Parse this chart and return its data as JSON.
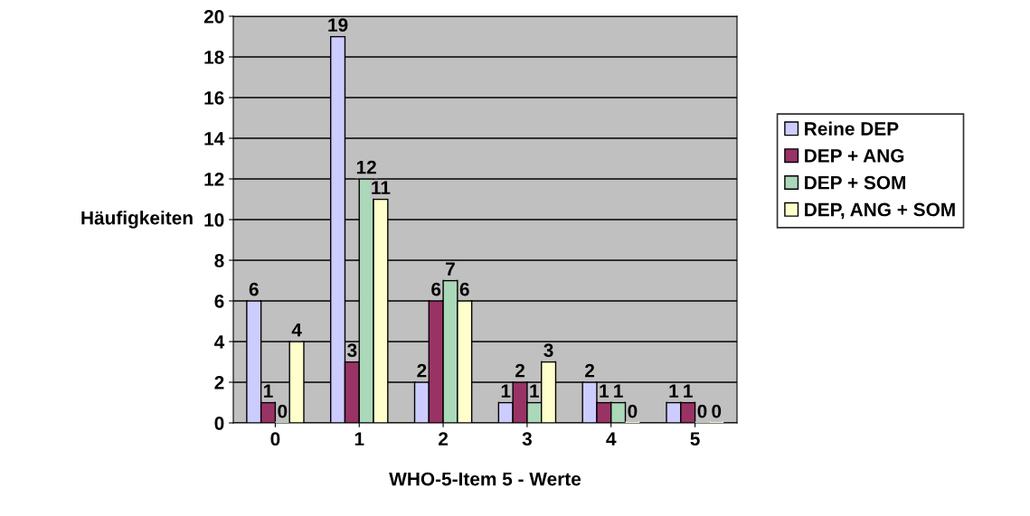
{
  "chart_data": {
    "type": "bar",
    "xlabel": "WHO-5-Item 5 - Werte",
    "ylabel": "Häufigkeiten",
    "categories": [
      "0",
      "1",
      "2",
      "3",
      "4",
      "5"
    ],
    "series": [
      {
        "name": "Reine DEP",
        "color": "#ccccff",
        "values": [
          6,
          19,
          2,
          1,
          2,
          1
        ]
      },
      {
        "name": "DEP + ANG",
        "color": "#993366",
        "values": [
          1,
          3,
          6,
          2,
          1,
          1
        ]
      },
      {
        "name": "DEP + SOM",
        "color": "#aad8b8",
        "values": [
          0,
          12,
          7,
          1,
          1,
          0
        ]
      },
      {
        "name": "DEP, ANG + SOM",
        "color": "#ffffcc",
        "values": [
          4,
          11,
          6,
          3,
          0,
          0
        ]
      }
    ],
    "ylim": [
      0,
      20
    ],
    "yticks": [
      0,
      2,
      4,
      6,
      8,
      10,
      12,
      14,
      16,
      18,
      20
    ],
    "grid": "y",
    "legend": "right",
    "data_labels": true
  }
}
